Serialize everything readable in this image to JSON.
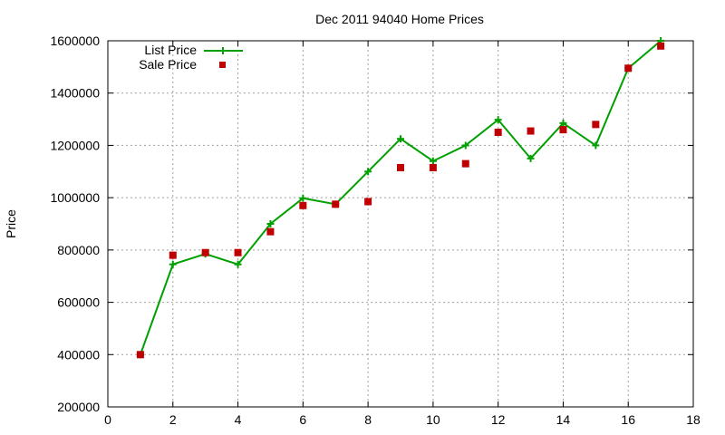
{
  "chart_data": {
    "type": "line",
    "title": "Dec 2011 94040 Home Prices",
    "xlabel": "",
    "ylabel": "Price",
    "xlim": [
      0,
      18
    ],
    "ylim": [
      200000,
      1600000
    ],
    "x_ticks": [
      0,
      2,
      4,
      6,
      8,
      10,
      12,
      14,
      16,
      18
    ],
    "y_ticks": [
      200000,
      400000,
      600000,
      800000,
      1000000,
      1200000,
      1400000,
      1600000
    ],
    "grid": true,
    "legend_position": "top-left",
    "series": [
      {
        "name": "List Price",
        "style": "line-with-plus-markers",
        "color": "#00a000",
        "x": [
          1,
          2,
          3,
          4,
          5,
          6,
          7,
          8,
          9,
          10,
          11,
          12,
          13,
          14,
          15,
          16,
          17
        ],
        "values": [
          400000,
          745000,
          785000,
          745000,
          900000,
          998000,
          975000,
          1100000,
          1225000,
          1140000,
          1200000,
          1298000,
          1150000,
          1285000,
          1200000,
          1495000,
          1600000
        ]
      },
      {
        "name": "Sale Price",
        "style": "square-markers",
        "color": "#c00000",
        "x": [
          1,
          2,
          3,
          4,
          5,
          6,
          7,
          8,
          9,
          10,
          11,
          12,
          13,
          14,
          15,
          16,
          17
        ],
        "values": [
          400000,
          780000,
          790000,
          790000,
          870000,
          970000,
          975000,
          985000,
          1115000,
          1115000,
          1130000,
          1250000,
          1255000,
          1260000,
          1280000,
          1495000,
          1580000
        ]
      }
    ]
  }
}
